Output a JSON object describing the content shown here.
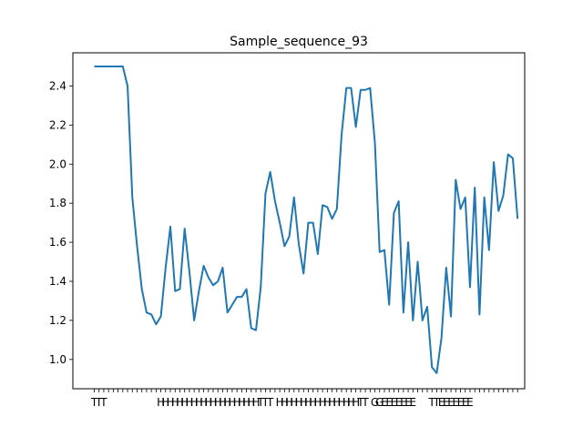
{
  "chart_data": {
    "type": "line",
    "title": "Sample_sequence_93",
    "xlabel": "",
    "ylabel": "",
    "grid": false,
    "ylim": [
      0.85,
      2.57
    ],
    "xlim": [
      -4.5,
      90.5
    ],
    "yticks": [
      1.0,
      1.2,
      1.4,
      1.6,
      1.8,
      2.0,
      2.2,
      2.4
    ],
    "ytick_labels": [
      "1.0",
      "1.2",
      "1.4",
      "1.6",
      "1.8",
      "2.0",
      "2.2",
      "2.4"
    ],
    "xtick_labels": [
      "T",
      "T",
      "T",
      "",
      "",
      "",
      "",
      "",
      "",
      "",
      "",
      "",
      "",
      "",
      "H",
      "H",
      "H",
      "H",
      "H",
      "H",
      "H",
      "H",
      "H",
      "H",
      "H",
      "H",
      "H",
      "H",
      "H",
      "H",
      "H",
      "H",
      "H",
      "H",
      "H",
      "T",
      "T",
      "T",
      "",
      "H",
      "H",
      "H",
      "H",
      "H",
      "H",
      "H",
      "H",
      "H",
      "H",
      "H",
      "H",
      "H",
      "H",
      "H",
      "H",
      "H",
      "T",
      "T",
      "",
      "G",
      "G",
      "E",
      "E",
      "E",
      "E",
      "E",
      "E",
      "E",
      "",
      "",
      "",
      "T",
      "T",
      "E",
      "E",
      "E",
      "E",
      "E",
      "E",
      "E",
      "",
      "",
      "",
      "",
      "",
      "",
      "",
      "",
      "",
      ""
    ],
    "series": [
      {
        "color": "#1f77b4",
        "values": [
          2.5,
          2.5,
          2.5,
          2.5,
          2.5,
          2.5,
          2.5,
          2.4,
          1.83,
          1.58,
          1.36,
          1.24,
          1.23,
          1.18,
          1.22,
          1.47,
          1.68,
          1.35,
          1.36,
          1.67,
          1.45,
          1.2,
          1.35,
          1.48,
          1.42,
          1.38,
          1.4,
          1.47,
          1.24,
          1.28,
          1.32,
          1.32,
          1.36,
          1.16,
          1.15,
          1.37,
          1.85,
          1.96,
          1.81,
          1.7,
          1.58,
          1.63,
          1.83,
          1.59,
          1.44,
          1.7,
          1.7,
          1.54,
          1.79,
          1.78,
          1.72,
          1.77,
          2.15,
          2.39,
          2.39,
          2.19,
          2.38,
          2.38,
          2.39,
          2.11,
          1.55,
          1.56,
          1.28,
          1.75,
          1.81,
          1.24,
          1.6,
          1.2,
          1.5,
          1.2,
          1.27,
          0.96,
          0.93,
          1.11,
          1.47,
          1.22,
          1.92,
          1.77,
          1.83,
          1.37,
          1.88,
          1.23,
          1.83,
          1.56,
          2.01,
          1.76,
          1.84,
          2.05,
          2.03,
          1.72
        ]
      }
    ]
  }
}
